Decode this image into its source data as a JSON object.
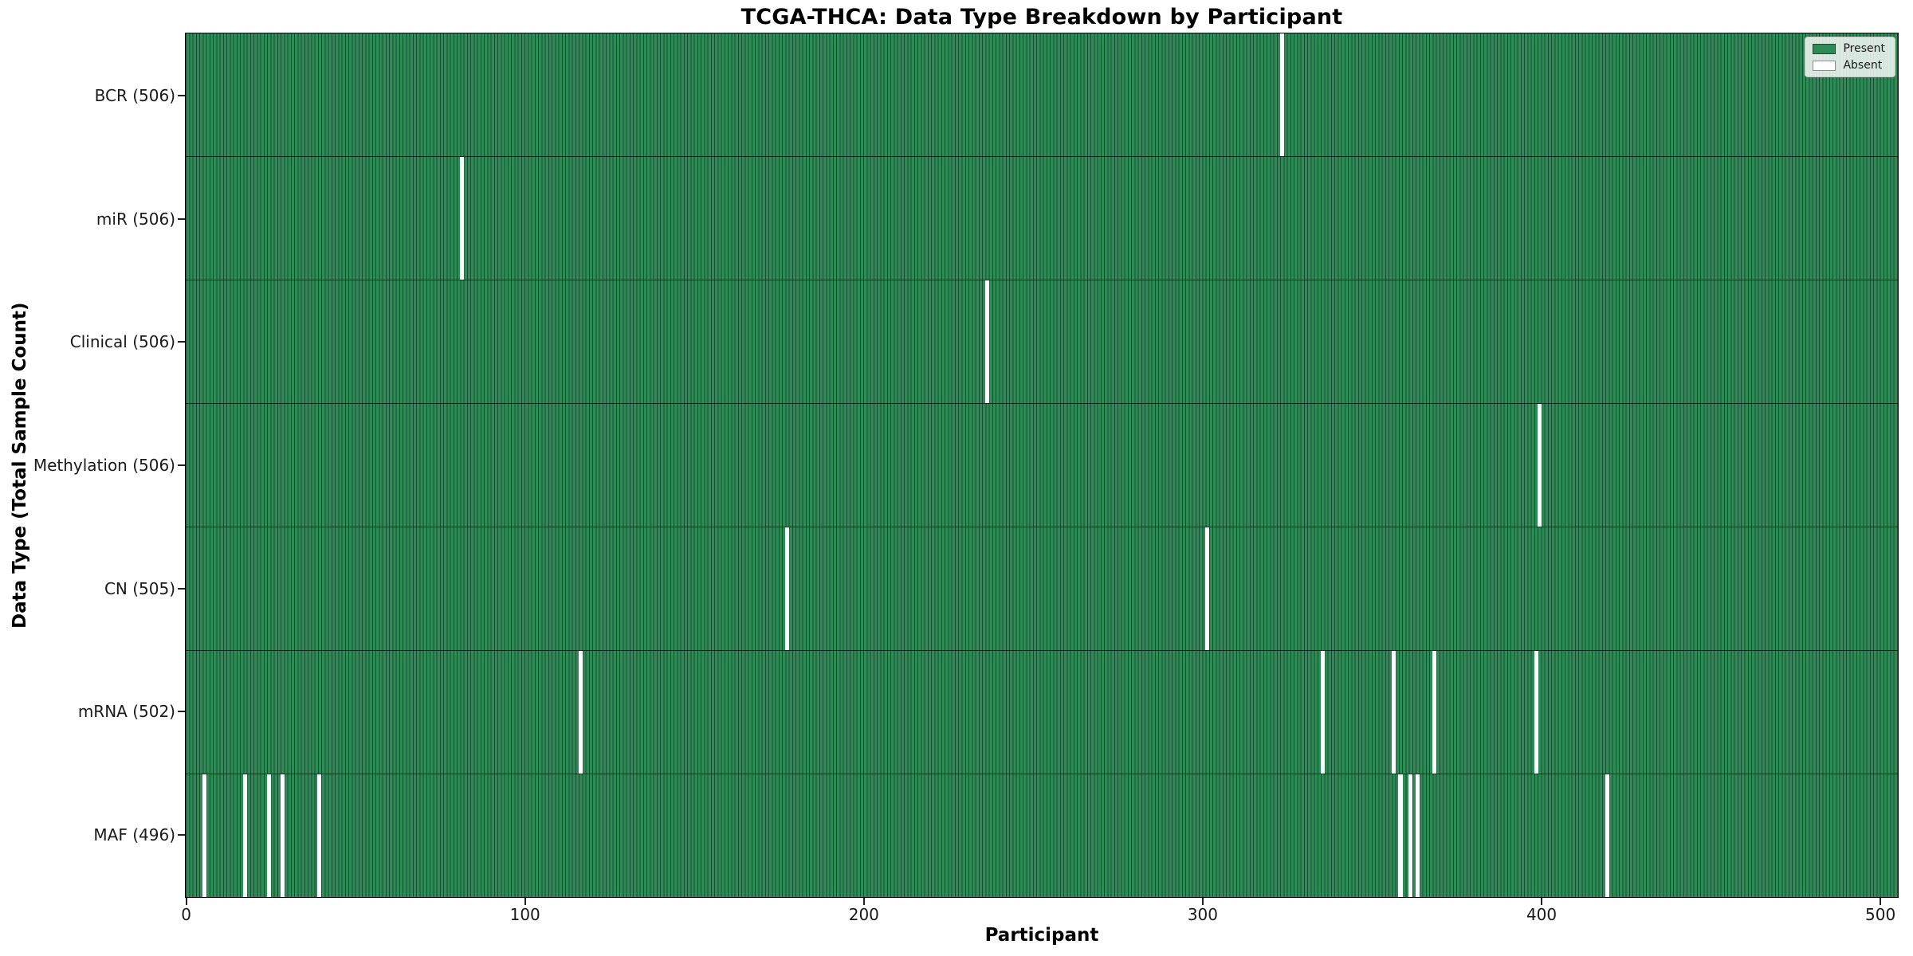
{
  "chart_data": {
    "type": "heatmap",
    "title": "TCGA-THCA: Data Type Breakdown by Participant",
    "xlabel": "Participant",
    "ylabel": "Data Type (Total Sample Count)",
    "x_ticks": [
      0,
      100,
      200,
      300,
      400,
      500
    ],
    "xlim": [
      0,
      505
    ],
    "n_participants": 505,
    "grid": false,
    "colors": {
      "present": "#2e8b57",
      "absent": "#ffffff",
      "bar_edge": "rgba(0,0,0,0.45)",
      "row_separator": "rgba(0,0,0,0.65)"
    },
    "legend": {
      "position": "upper right",
      "entries": [
        {
          "label": "Present",
          "color": "#2e8b57"
        },
        {
          "label": "Absent",
          "color": "#ffffff"
        }
      ]
    },
    "rows": [
      {
        "label": "BCR (506)",
        "data_type": "BCR",
        "total_sample_count": 506,
        "absent_participants": [
          323
        ]
      },
      {
        "label": "miR (506)",
        "data_type": "miR",
        "total_sample_count": 506,
        "absent_participants": [
          81
        ]
      },
      {
        "label": "Clinical (506)",
        "data_type": "Clinical",
        "total_sample_count": 506,
        "absent_participants": [
          236
        ]
      },
      {
        "label": "Methylation (506)",
        "data_type": "Methylation",
        "total_sample_count": 506,
        "absent_participants": [
          399
        ]
      },
      {
        "label": "CN (505)",
        "data_type": "CN",
        "total_sample_count": 505,
        "absent_participants": [
          177,
          301
        ]
      },
      {
        "label": "mRNA (502)",
        "data_type": "mRNA",
        "total_sample_count": 502,
        "absent_participants": [
          116,
          335,
          356,
          368,
          398
        ]
      },
      {
        "label": "MAF (496)",
        "data_type": "MAF",
        "total_sample_count": 496,
        "absent_participants": [
          5,
          17,
          24,
          28,
          39,
          358,
          361,
          363,
          419
        ]
      }
    ]
  }
}
